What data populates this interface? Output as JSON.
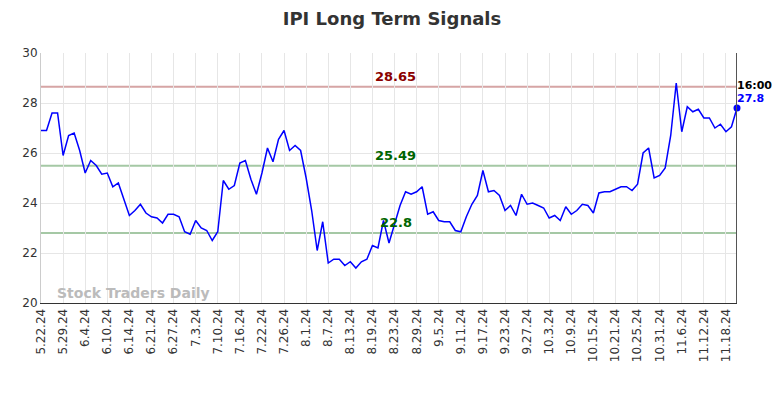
{
  "chart_data": {
    "type": "line",
    "title": "IPI Long Term Signals",
    "color": "blue",
    "grid": true,
    "ylim": [
      20,
      30
    ],
    "yticks": [
      20,
      22,
      24,
      26,
      28,
      30
    ],
    "categories": [
      "5.22.24",
      null,
      null,
      null,
      "5.29.24",
      null,
      null,
      null,
      "6.4.24",
      null,
      null,
      null,
      "6.10.24",
      null,
      null,
      null,
      "6.14.24",
      null,
      null,
      null,
      "6.21.24",
      null,
      null,
      null,
      "6.27.24",
      null,
      null,
      null,
      "7.3.24",
      null,
      null,
      null,
      "7.10.24",
      null,
      null,
      null,
      "7.16.24",
      null,
      null,
      null,
      "7.22.24",
      null,
      null,
      null,
      "7.26.24",
      null,
      null,
      null,
      "8.1.24",
      null,
      null,
      null,
      "8.7.24",
      null,
      null,
      null,
      "8.13.24",
      null,
      null,
      null,
      "8.19.24",
      null,
      null,
      null,
      "8.23.24",
      null,
      null,
      null,
      "8.29.24",
      null,
      null,
      null,
      "9.5.24",
      null,
      null,
      null,
      "9.11.24",
      null,
      null,
      null,
      "9.17.24",
      null,
      null,
      null,
      "9.23.24",
      null,
      null,
      null,
      "9.27.24",
      null,
      null,
      null,
      "10.3.24",
      null,
      null,
      null,
      "10.9.24",
      null,
      null,
      null,
      "10.15.24",
      null,
      null,
      null,
      "10.21.24",
      null,
      null,
      null,
      "10.25.24",
      null,
      null,
      null,
      "10.31.24",
      null,
      null,
      null,
      "11.6.24",
      null,
      null,
      null,
      "11.12.24",
      null,
      null,
      null,
      "11.18.24",
      null,
      null
    ],
    "values": [
      26.9,
      26.9,
      27.6,
      27.6,
      25.9,
      26.7,
      26.8,
      26.1,
      25.2,
      25.7,
      25.5,
      25.15,
      25.2,
      24.65,
      24.8,
      24.1,
      23.5,
      23.7,
      23.95,
      23.6,
      23.45,
      23.4,
      23.2,
      23.55,
      23.55,
      23.45,
      22.85,
      22.75,
      23.3,
      23.0,
      22.9,
      22.5,
      22.85,
      24.9,
      24.55,
      24.7,
      25.6,
      25.7,
      24.95,
      24.35,
      25.2,
      26.2,
      25.65,
      26.55,
      26.9,
      26.1,
      26.3,
      26.1,
      25.0,
      23.7,
      22.1,
      23.25,
      21.6,
      21.75,
      21.75,
      21.5,
      21.65,
      21.4,
      21.65,
      21.75,
      22.3,
      22.2,
      23.3,
      22.4,
      23.1,
      23.9,
      24.45,
      24.35,
      24.45,
      24.65,
      23.55,
      23.65,
      23.3,
      23.25,
      23.25,
      22.9,
      22.85,
      23.45,
      23.95,
      24.3,
      25.3,
      24.45,
      24.5,
      24.3,
      23.7,
      23.9,
      23.5,
      24.35,
      23.95,
      24.0,
      23.9,
      23.8,
      23.4,
      23.5,
      23.3,
      23.85,
      23.55,
      23.7,
      23.95,
      23.9,
      23.6,
      24.4,
      24.45,
      24.45,
      24.55,
      24.65,
      24.65,
      24.5,
      24.75,
      26.0,
      26.2,
      25.0,
      25.1,
      25.4,
      26.7,
      28.8,
      26.85,
      27.85,
      27.65,
      27.75,
      27.4,
      27.4,
      27.0,
      27.15,
      26.85,
      27.05,
      27.8
    ],
    "levels": [
      {
        "value": 28.65,
        "color": "#8b0000"
      },
      {
        "value": 25.49,
        "color": "#006400"
      },
      {
        "value": 22.8,
        "color": "#006400"
      }
    ],
    "last_point": {
      "time": "16:00",
      "value": 27.8
    },
    "watermark": "Stock Traders Daily"
  }
}
